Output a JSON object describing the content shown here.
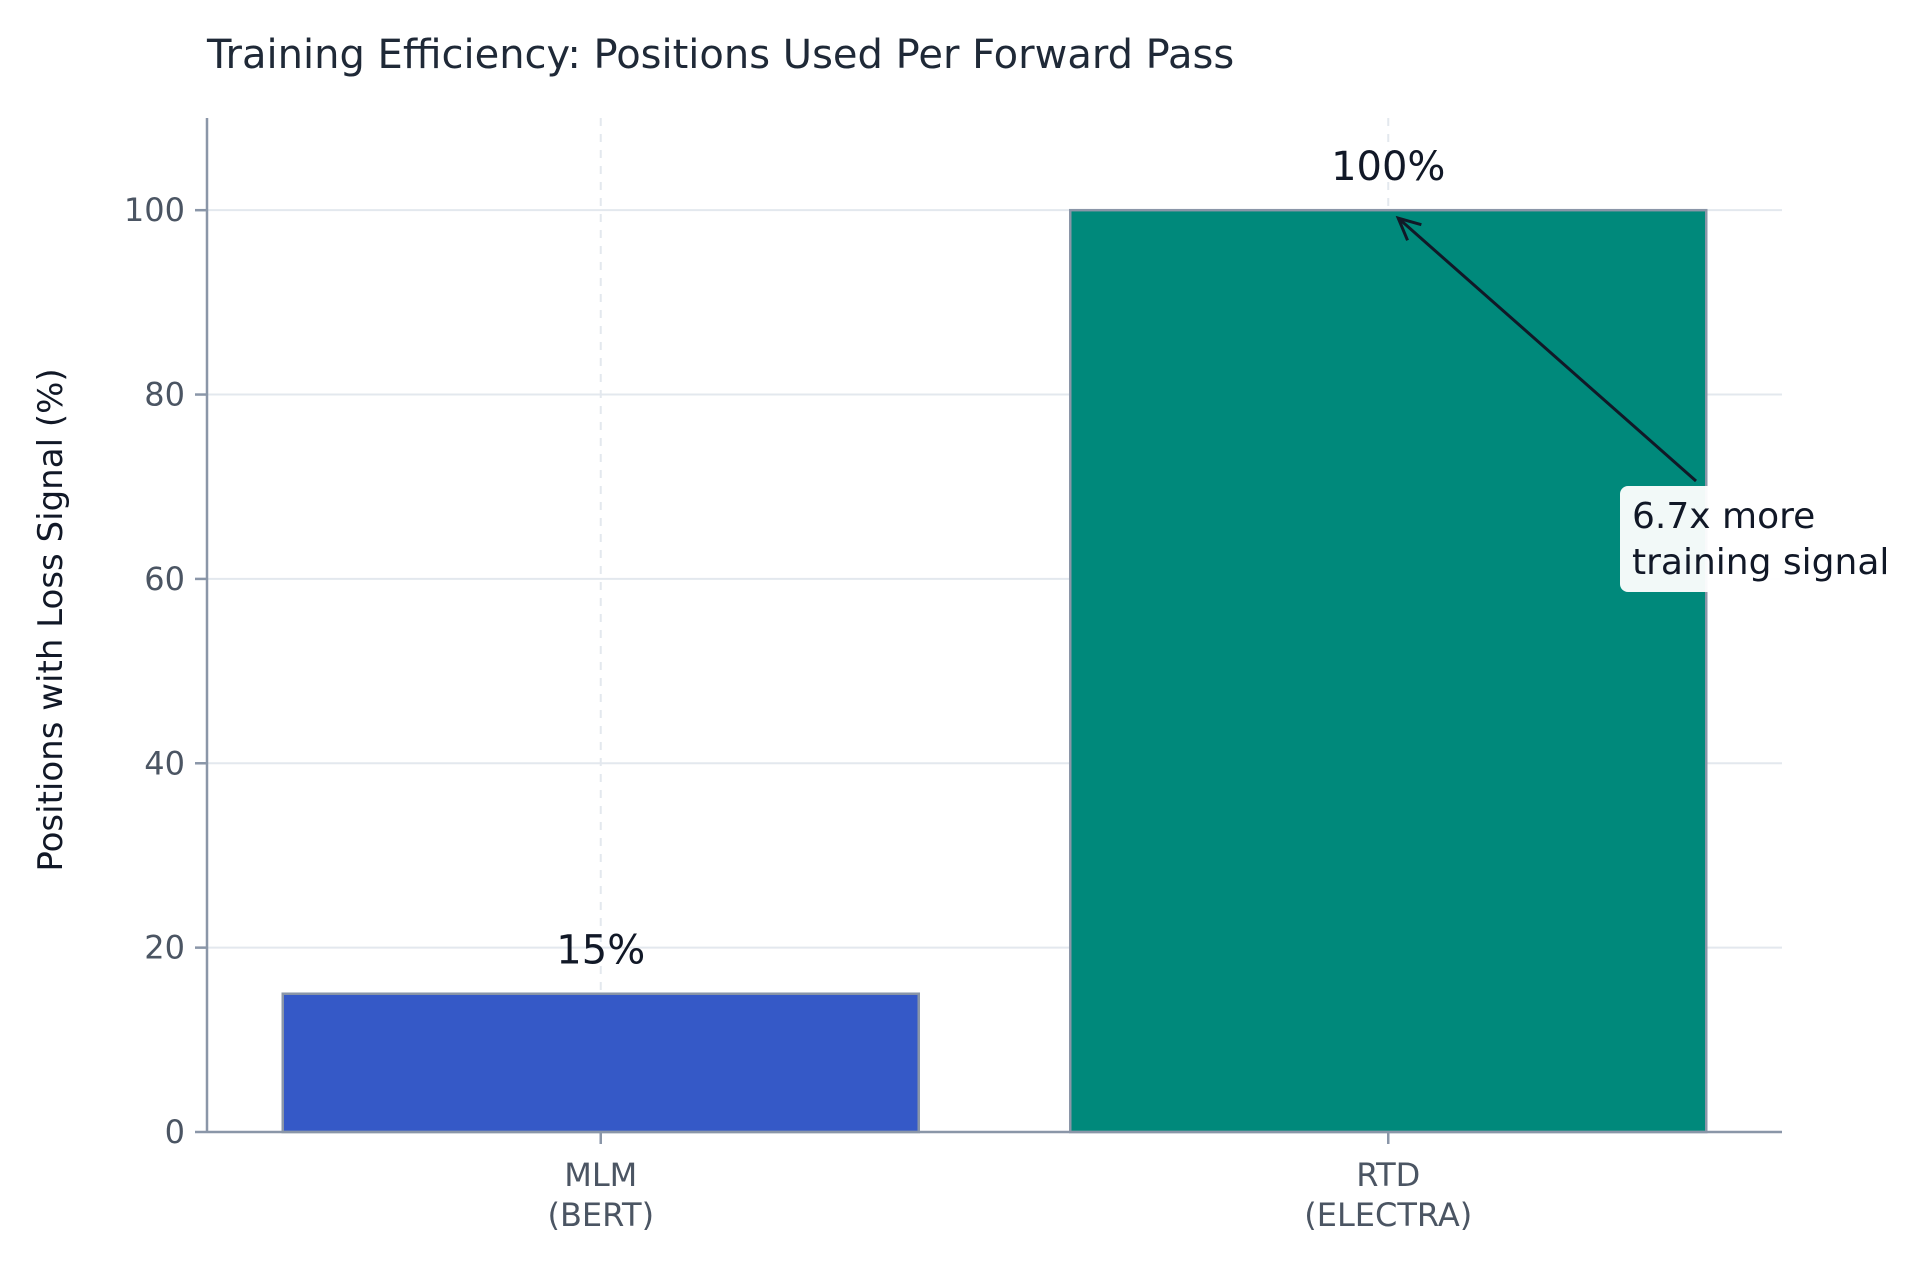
{
  "chart_data": {
    "type": "bar",
    "title": "Training Efficiency: Positions Used Per Forward Pass",
    "xlabel": "",
    "ylabel": "Positions with Loss Signal (%)",
    "categories": [
      [
        "MLM",
        "(BERT)"
      ],
      [
        "RTD",
        "(ELECTRA)"
      ]
    ],
    "values": [
      15,
      100
    ],
    "data_labels": [
      "15%",
      "100%"
    ],
    "colors": [
      "#3559c7",
      "#00897b"
    ],
    "edge_color": "#8a96a8",
    "ylim": [
      0,
      110
    ],
    "yticks": [
      0,
      20,
      40,
      60,
      80,
      100
    ],
    "grid": true,
    "annotation": {
      "lines": [
        "6.7x more",
        "training signal"
      ],
      "target_category": 1,
      "target_value": 100,
      "text_value": 73
    }
  }
}
